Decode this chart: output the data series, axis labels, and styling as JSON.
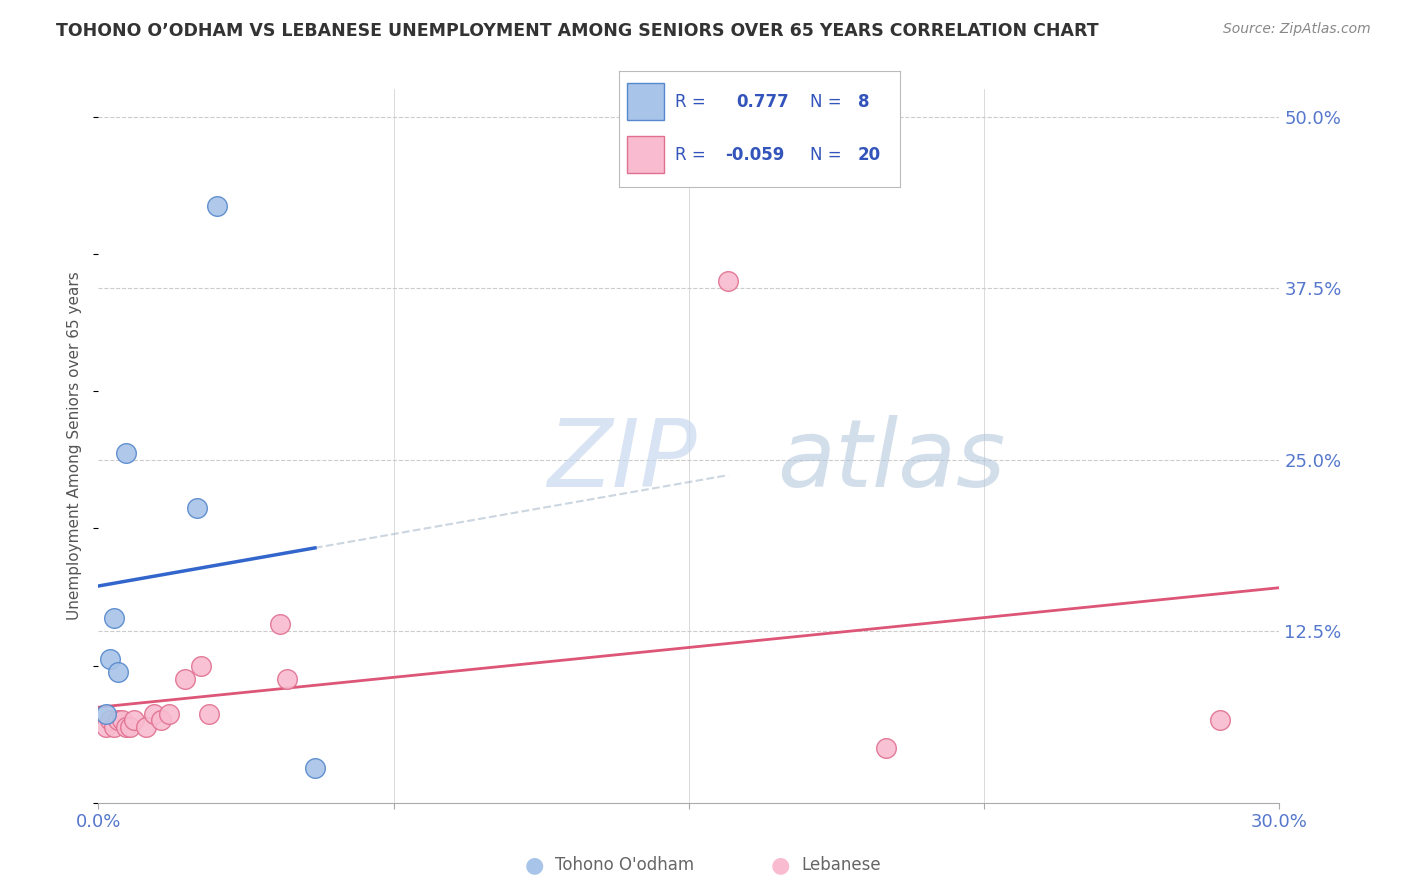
{
  "title": "TOHONO O’ODHAM VS LEBANESE UNEMPLOYMENT AMONG SENIORS OVER 65 YEARS CORRELATION CHART",
  "source": "Source: ZipAtlas.com",
  "ylabel": "Unemployment Among Seniors over 65 years",
  "xlim": [
    0.0,
    0.3
  ],
  "ylim": [
    0.0,
    0.52
  ],
  "xtick_positions": [
    0.0,
    0.075,
    0.15,
    0.225,
    0.3
  ],
  "xtick_labels": [
    "0.0%",
    "",
    "",
    "",
    "30.0%"
  ],
  "ytick_positions": [
    0.0,
    0.125,
    0.25,
    0.375,
    0.5
  ],
  "ytick_labels": [
    "",
    "12.5%",
    "25.0%",
    "37.5%",
    "50.0%"
  ],
  "watermark_zip": "ZIP",
  "watermark_atlas": "atlas",
  "tohono_x": [
    0.002,
    0.003,
    0.004,
    0.005,
    0.007,
    0.025,
    0.03,
    0.055
  ],
  "tohono_y": [
    0.065,
    0.105,
    0.135,
    0.095,
    0.255,
    0.215,
    0.435,
    0.025
  ],
  "lebanese_x": [
    0.002,
    0.003,
    0.004,
    0.005,
    0.006,
    0.007,
    0.008,
    0.009,
    0.012,
    0.014,
    0.016,
    0.018,
    0.022,
    0.026,
    0.028,
    0.046,
    0.048,
    0.16,
    0.2,
    0.285
  ],
  "lebanese_y": [
    0.055,
    0.06,
    0.055,
    0.06,
    0.06,
    0.055,
    0.055,
    0.06,
    0.055,
    0.065,
    0.06,
    0.065,
    0.09,
    0.1,
    0.065,
    0.13,
    0.09,
    0.38,
    0.04,
    0.06
  ],
  "tohono_R": 0.777,
  "tohono_N": 8,
  "lebanese_R": -0.059,
  "lebanese_N": 20,
  "tohono_scatter_color": "#a8c4e8",
  "tohono_edge_color": "#5588cc",
  "lebanese_scatter_color": "#f8bbd0",
  "lebanese_edge_color": "#e07090",
  "tohono_line_color": "#3366cc",
  "lebanese_line_color": "#dd5577",
  "legend_text_color": "#3355bb",
  "axis_label_color": "#5577cc",
  "title_color": "#333333",
  "source_color": "#888888",
  "ylabel_color": "#555555",
  "background_color": "#ffffff",
  "grid_color": "#cccccc",
  "bottom_legend_color": "#666666"
}
